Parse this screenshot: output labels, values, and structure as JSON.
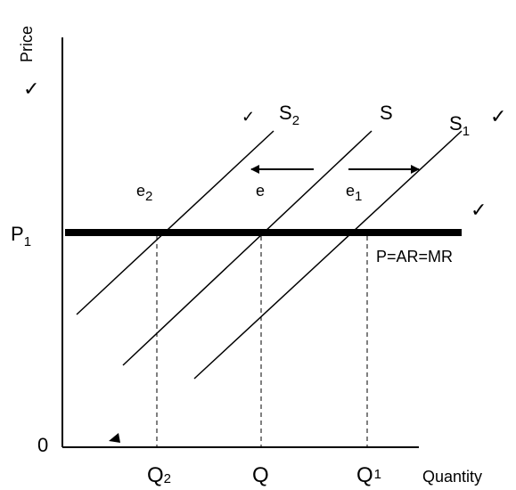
{
  "axes": {
    "y_label": "Price",
    "x_label": "Quantity",
    "origin": "0"
  },
  "price_line": {
    "label": "P",
    "subscript": "1",
    "curve_label": "P=AR=MR"
  },
  "curves": {
    "s2": {
      "label": "S",
      "subscript": "2"
    },
    "s": {
      "label": "S"
    },
    "s1": {
      "label": "S",
      "subscript": "1"
    }
  },
  "equilibria": {
    "e2": {
      "label": "e",
      "subscript": "2"
    },
    "e": {
      "label": "e"
    },
    "e1": {
      "label": "e",
      "subscript": "1"
    }
  },
  "quantities": {
    "q2": {
      "label": "Q",
      "subscript": "2"
    },
    "q": {
      "label": "Q"
    },
    "q1": {
      "label": "Q",
      "subscript": "1"
    }
  },
  "marks": {
    "check": "✓",
    "arrow_left": "shift-left",
    "arrow_right": "shift-right"
  }
}
